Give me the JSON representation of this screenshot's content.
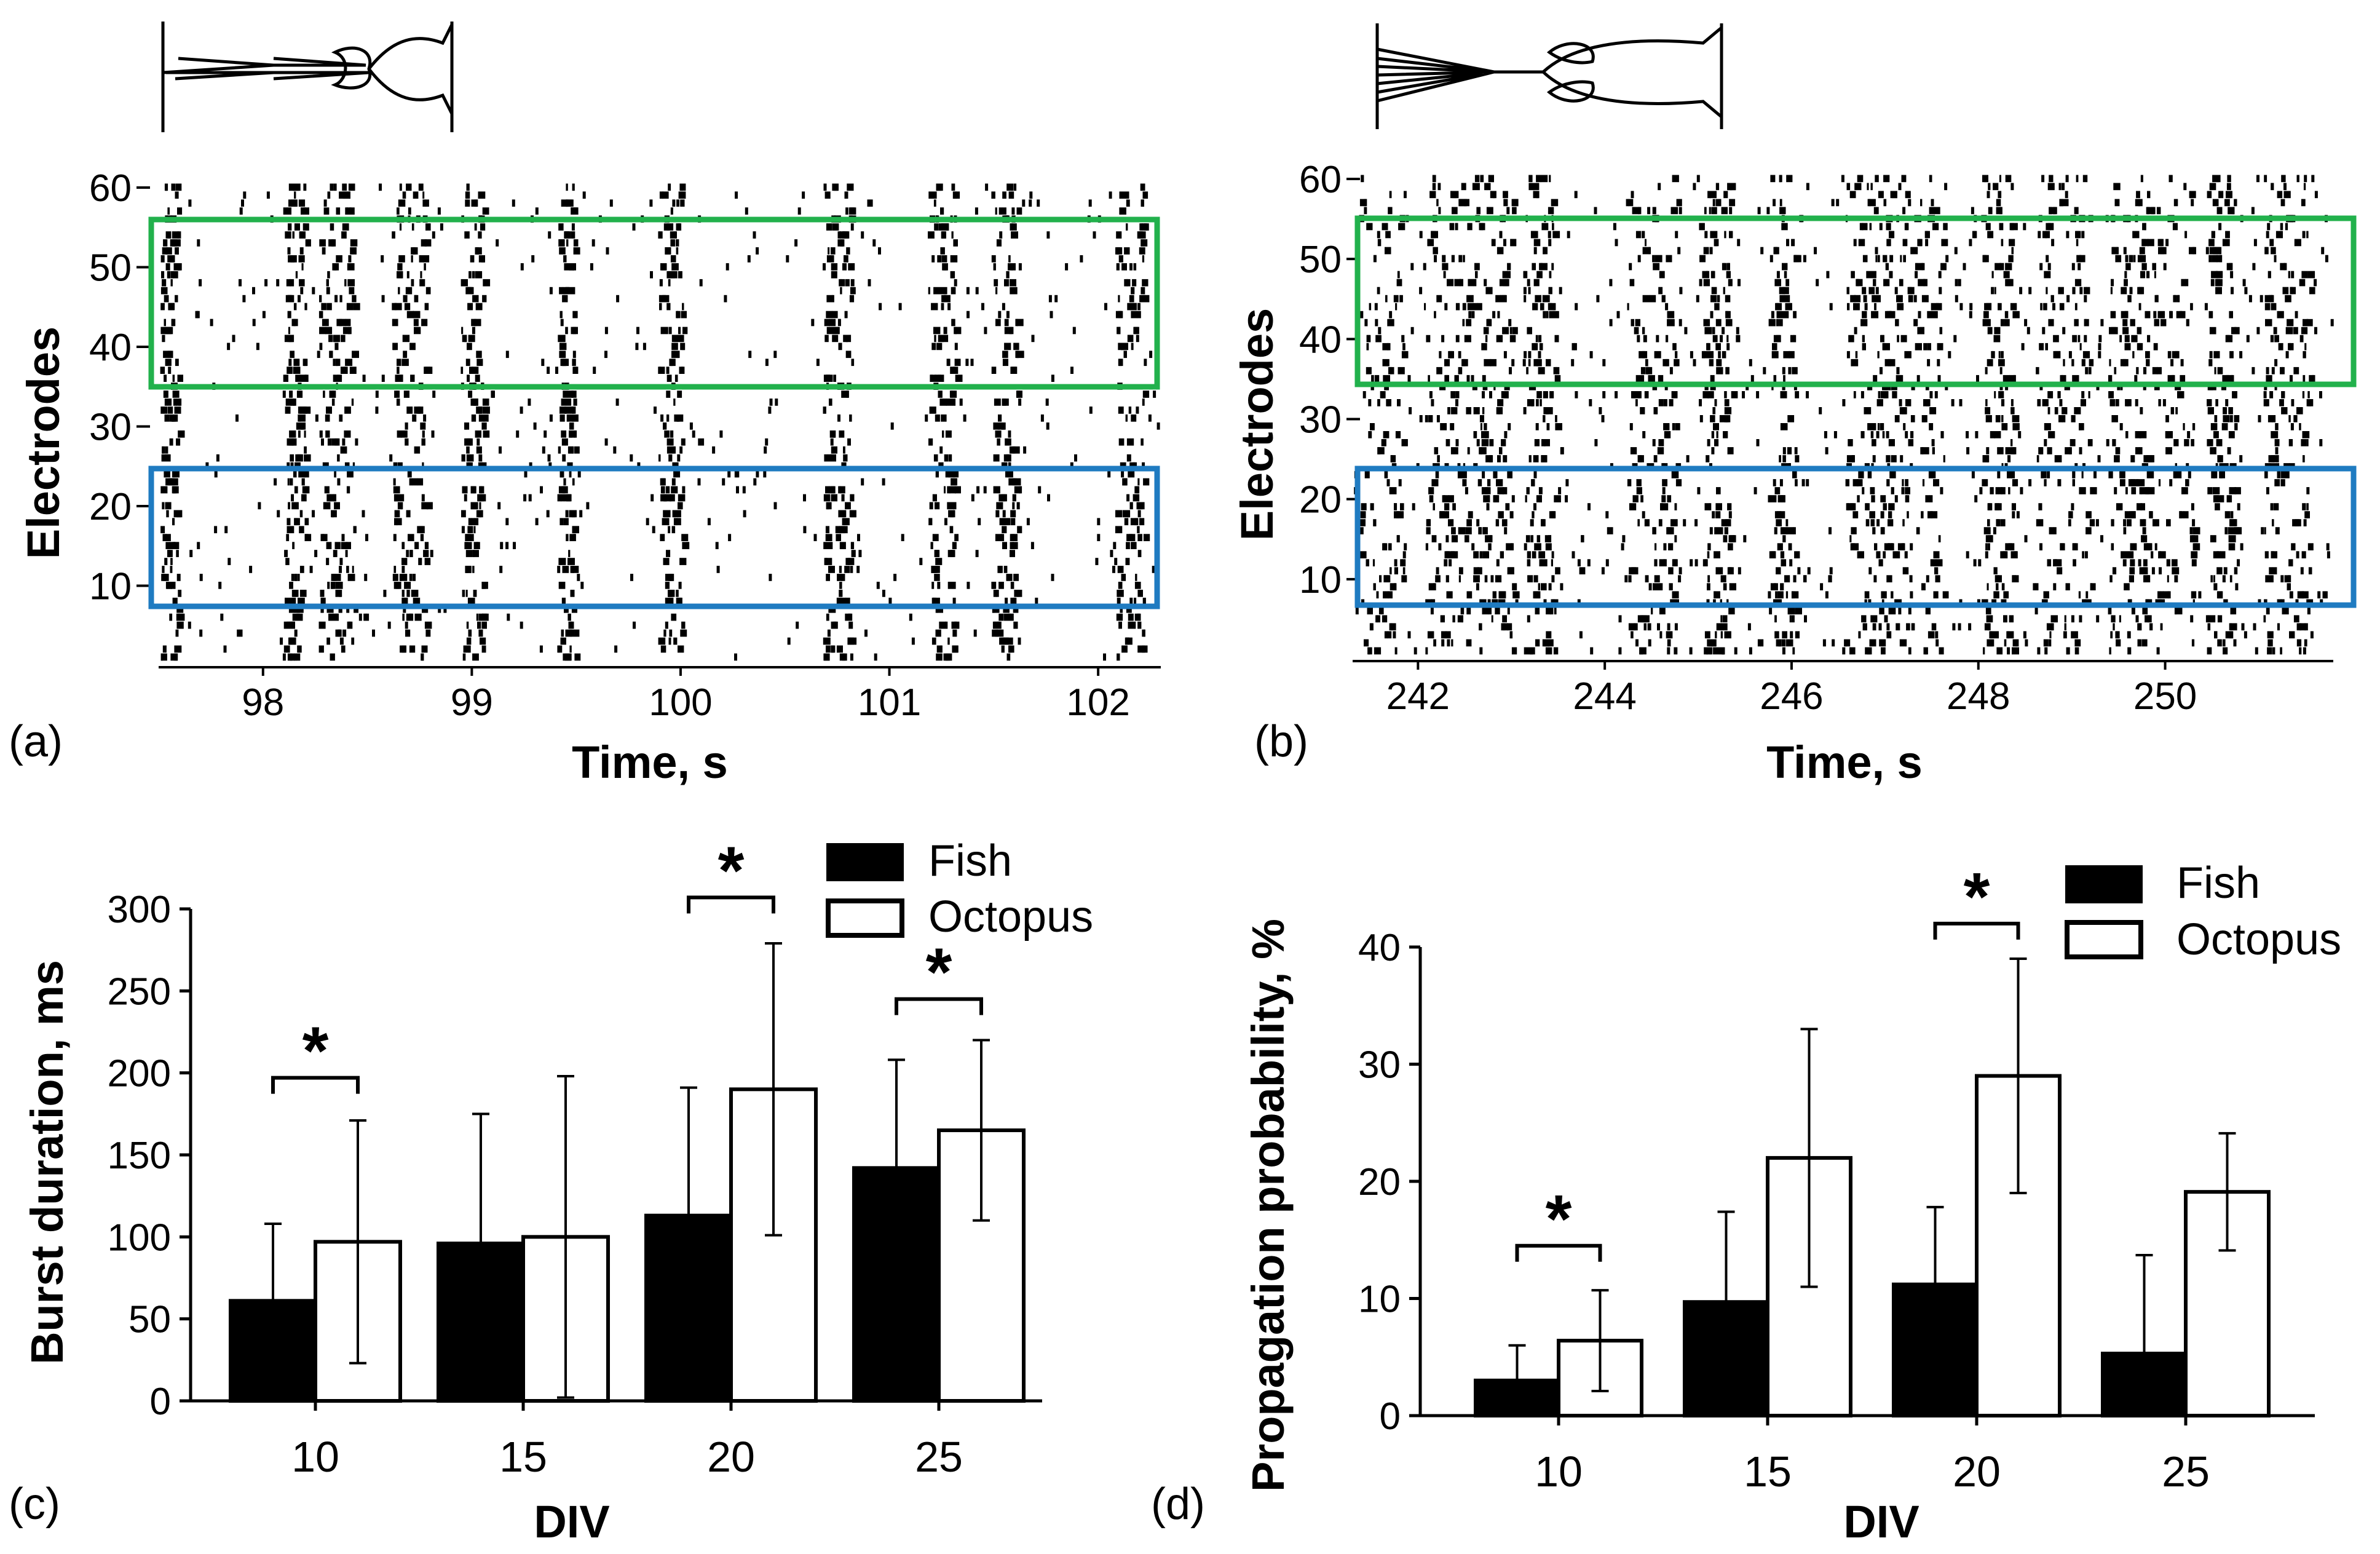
{
  "colors": {
    "spike": "#000000",
    "green_box": "#22b14c",
    "blue_box": "#1f7bc1",
    "fish": "#000000",
    "octopus": "#ffffff"
  },
  "panels": {
    "a": {
      "label": "(a)",
      "icon": "arrow-shaped-network-icon"
    },
    "b": {
      "label": "(b)",
      "icon": "fan-shaped-network-icon"
    },
    "c": {
      "label": "(c)"
    },
    "d": {
      "label": "(d)"
    }
  },
  "chart_data": [
    {
      "id": "a",
      "type": "raster",
      "xlabel": "Time, s",
      "ylabel": "Electrodes",
      "xlim": [
        97.5,
        102.3
      ],
      "ylim": [
        0,
        61
      ],
      "xticks": [
        "98",
        "99",
        "100",
        "101",
        "102"
      ],
      "xtick_values": [
        98,
        99,
        100,
        101,
        102
      ],
      "yticks": [
        "10",
        "20",
        "30",
        "40",
        "50",
        "60"
      ],
      "ytick_values": [
        10,
        20,
        30,
        40,
        50,
        60
      ],
      "burst_times": [
        97.55,
        98.15,
        98.35,
        98.7,
        99.0,
        99.45,
        99.95,
        100.75,
        101.25,
        101.55,
        102.15
      ],
      "top_region_electrodes": [
        36,
        56
      ],
      "bottom_region_electrodes": [
        8,
        25
      ]
    },
    {
      "id": "b",
      "type": "raster",
      "xlabel": "Time, s",
      "ylabel": "Electrodes",
      "xlim": [
        241.3,
        251.8
      ],
      "ylim": [
        0,
        61
      ],
      "xticks": [
        "242",
        "244",
        "246",
        "248",
        "250"
      ],
      "xtick_values": [
        242,
        244,
        246,
        248,
        250
      ],
      "yticks": [
        "10",
        "20",
        "30",
        "40",
        "50",
        "60"
      ],
      "ytick_values": [
        10,
        20,
        30,
        40,
        50,
        60
      ],
      "burst_times": [
        241.6,
        242.3,
        242.8,
        243.3,
        244.5,
        245.2,
        245.9,
        246.8,
        247.3,
        248.2,
        248.9,
        249.6,
        250.0,
        250.6,
        251.3
      ],
      "top_region_electrodes": [
        36,
        56
      ],
      "bottom_region_electrodes": [
        8,
        25
      ]
    },
    {
      "id": "c",
      "type": "bar",
      "xlabel": "DIV",
      "ylabel": "Burst duration, ms",
      "categories": [
        "10",
        "15",
        "20",
        "25"
      ],
      "series": [
        {
          "name": "Fish",
          "values": [
            61,
            96,
            113,
            142
          ],
          "errors": [
            47,
            79,
            78,
            66
          ]
        },
        {
          "name": "Octopus",
          "values": [
            97,
            100,
            190,
            165
          ],
          "errors": [
            74,
            98,
            89,
            55
          ]
        }
      ],
      "ylim": [
        0,
        300
      ],
      "yticks": [
        "0",
        "50",
        "100",
        "150",
        "200",
        "250",
        "300"
      ],
      "ytick_values": [
        0,
        50,
        100,
        150,
        200,
        250,
        300
      ],
      "significance": [
        {
          "category": "10",
          "label": "*",
          "y": 197
        },
        {
          "category": "20",
          "label": "*",
          "y": 307
        },
        {
          "category": "25",
          "label": "*",
          "y": 245
        }
      ],
      "legend": [
        "Fish",
        "Octopus"
      ]
    },
    {
      "id": "d",
      "type": "bar",
      "xlabel": "DIV",
      "ylabel": "Propagation probability, %",
      "categories": [
        "10",
        "15",
        "20",
        "25"
      ],
      "series": [
        {
          "name": "Fish",
          "values": [
            3,
            9.7,
            11.2,
            5.3
          ],
          "errors": [
            3,
            7.7,
            6.6,
            8.4
          ]
        },
        {
          "name": "Octopus",
          "values": [
            6.4,
            22,
            29,
            19.1
          ],
          "errors": [
            4.3,
            11,
            10,
            5
          ]
        }
      ],
      "ylim": [
        0,
        40
      ],
      "yticks": [
        "0",
        "10",
        "20",
        "30",
        "40"
      ],
      "ytick_values": [
        0,
        10,
        20,
        30,
        40
      ],
      "significance": [
        {
          "category": "10",
          "label": "*",
          "y": 14.5
        },
        {
          "category": "20",
          "label": "*",
          "y": 42
        }
      ],
      "legend": [
        "Fish",
        "Octopus"
      ]
    }
  ]
}
